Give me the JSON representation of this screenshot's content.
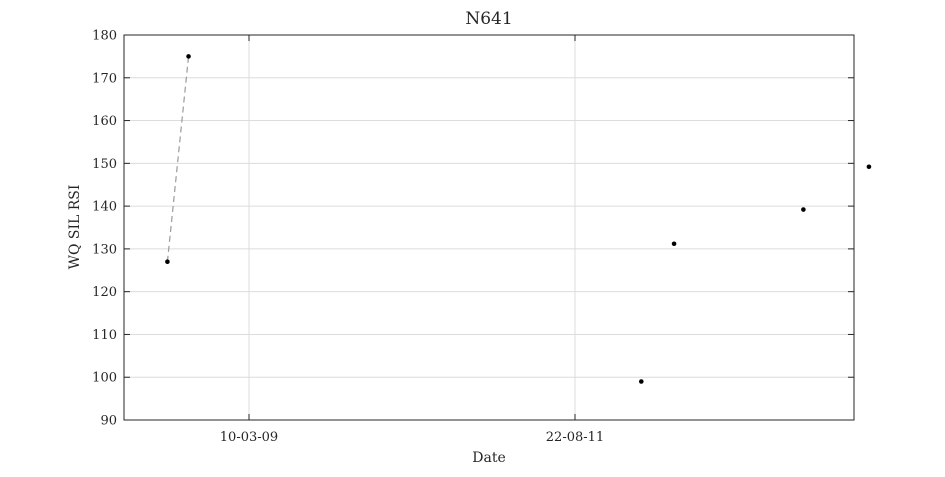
{
  "chart_data": {
    "type": "scatter",
    "title": "N641",
    "xlabel": "Date",
    "ylabel": "WQ SIL RSI",
    "x_ticks": [
      "10-03-09",
      "22-08-11"
    ],
    "ylim": [
      90,
      180
    ],
    "y_ticks": [
      "90",
      "100",
      "110",
      "120",
      "130",
      "140",
      "150",
      "160",
      "170",
      "180"
    ],
    "grid": true,
    "points": [
      {
        "date": "2008-07-29",
        "value": 127
      },
      {
        "date": "2008-09-25",
        "value": 175
      },
      {
        "date": "2012-02-20",
        "value": 99
      },
      {
        "date": "2012-05-20",
        "value": 131.2
      },
      {
        "date": "2013-05-10",
        "value": 139.2
      },
      {
        "date": "2013-11-06",
        "value": 149.2
      }
    ],
    "dashed_connection": [
      0,
      1
    ]
  }
}
